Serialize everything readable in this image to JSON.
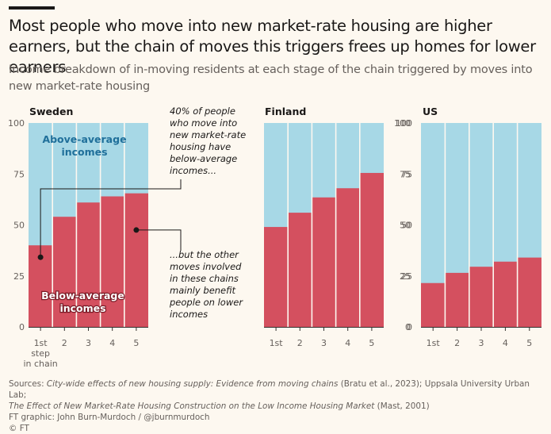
{
  "title": "Most people who move into new market-rate housing are higher earners, but the chain of moves this triggers frees up homes for lower earners",
  "subtitle": "Income breakdown of in-moving residents at each stage of the chain triggered by moves into new market-rate housing",
  "colors": {
    "below": "#d4505f",
    "above": "#a7d8e6",
    "axis": "#b3aca6"
  },
  "chart_data": {
    "type": "bar",
    "stacked_share": true,
    "ylim": [
      0,
      100
    ],
    "yticks": [
      0,
      25,
      50,
      75,
      100
    ],
    "panels": [
      {
        "title": "Sweden",
        "categories": [
          "1st step in chain",
          "2",
          "3",
          "4",
          "5"
        ],
        "category_labels": [
          [
            "1st",
            "step",
            "in chain"
          ],
          [
            "2"
          ],
          [
            "3"
          ],
          [
            "4"
          ],
          [
            "5"
          ]
        ],
        "series": [
          {
            "name": "Below-average incomes",
            "values": [
              40,
              54,
              61,
              64,
              65.5
            ]
          },
          {
            "name": "Above-average incomes",
            "values": [
              60,
              46,
              39,
              36,
              34.5
            ]
          }
        ],
        "inner_labels": {
          "above": [
            "Above-average",
            "incomes"
          ],
          "below": [
            "Below-average",
            "incomes"
          ]
        },
        "annotations": [
          {
            "lines": [
              "40% of people",
              "who move into",
              "new market-rate",
              "housing have",
              "below-average",
              "incomes..."
            ]
          },
          {
            "lines": [
              "...but the other",
              "moves involved",
              "in these chains",
              "mainly benefit",
              "people on lower",
              "incomes"
            ]
          }
        ]
      },
      {
        "title": "Finland",
        "categories": [
          "1st",
          "2",
          "3",
          "4",
          "5"
        ],
        "series": [
          {
            "name": "Below-average incomes",
            "values": [
              49,
              56,
              63.5,
              68,
              75.5
            ]
          },
          {
            "name": "Above-average incomes",
            "values": [
              51,
              44,
              36.5,
              32,
              24.5
            ]
          }
        ]
      },
      {
        "title": "US",
        "categories": [
          "1st",
          "2",
          "3",
          "4",
          "5"
        ],
        "series": [
          {
            "name": "Below-average incomes",
            "values": [
              21.5,
              26.5,
              29.5,
              32,
              34
            ]
          },
          {
            "name": "Above-average incomes",
            "values": [
              78.5,
              73.5,
              70.5,
              68,
              66
            ]
          }
        ]
      }
    ]
  },
  "footer": {
    "line1_prefix": "Sources: ",
    "line1_italic": "City-wide effects of new housing supply: Evidence from moving chains",
    "line1_suffix": " (Bratu et al., 2023); Uppsala University Urban Lab;",
    "line2_italic": "The Effect of New Market-Rate Housing Construction on the Low Income Housing Market",
    "line2_suffix": " (Mast, 2001)",
    "line3": "FT graphic: John Burn-Murdoch / @jburnmurdoch",
    "line4": "© FT"
  }
}
